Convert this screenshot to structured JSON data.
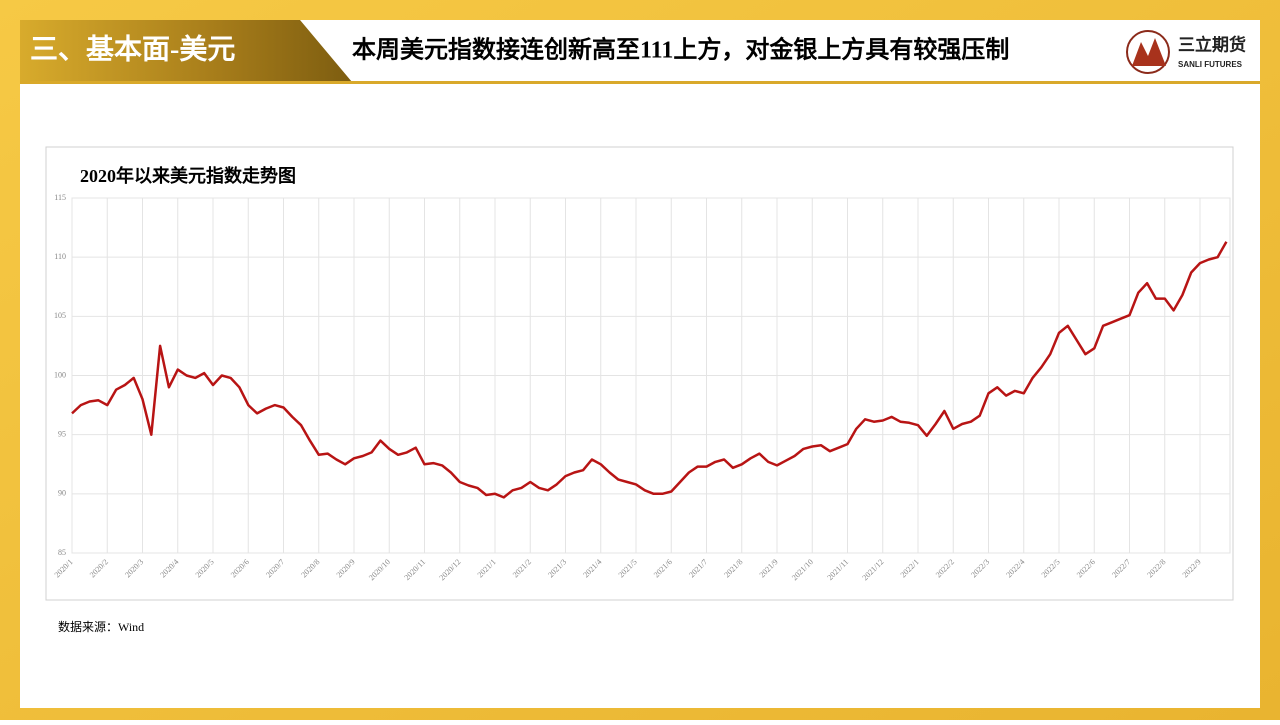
{
  "header": {
    "section": "三、基本面-美元",
    "title": "本周美元指数接连创新高至111上方，对金银上方具有较强压制"
  },
  "logo": {
    "name": "三立期货",
    "english": "SANLI FUTURES"
  },
  "chart_data": {
    "type": "line",
    "title": "2020年以来美元指数走势图",
    "categories": [
      "2020/1",
      null,
      null,
      null,
      "2020/2",
      null,
      null,
      null,
      "2020/3",
      null,
      null,
      null,
      "2020/4",
      null,
      null,
      null,
      "2020/5",
      null,
      null,
      null,
      "2020/6",
      null,
      null,
      null,
      "2020/7",
      null,
      null,
      null,
      "2020/8",
      null,
      null,
      null,
      "2020/9",
      null,
      null,
      null,
      "2020/10",
      null,
      null,
      null,
      "2020/11",
      null,
      null,
      null,
      "2020/12",
      null,
      null,
      null,
      "2021/1",
      null,
      null,
      null,
      "2021/2",
      null,
      null,
      null,
      "2021/3",
      null,
      null,
      null,
      "2021/4",
      null,
      null,
      null,
      "2021/5",
      null,
      null,
      null,
      "2021/6",
      null,
      null,
      null,
      "2021/7",
      null,
      null,
      null,
      "2021/8",
      null,
      null,
      null,
      "2021/9",
      null,
      null,
      null,
      "2021/10",
      null,
      null,
      null,
      "2021/11",
      null,
      null,
      null,
      "2021/12",
      null,
      null,
      null,
      "2022/1",
      null,
      null,
      null,
      "2022/2",
      null,
      null,
      null,
      "2022/3",
      null,
      null,
      null,
      "2022/4",
      null,
      null,
      null,
      "2022/5",
      null,
      null,
      null,
      "2022/6",
      null,
      null,
      null,
      "2022/7",
      null,
      null,
      null,
      "2022/8",
      null,
      null,
      null,
      "2022/9",
      null,
      null,
      null
    ],
    "values": [
      96.8,
      97.5,
      97.8,
      97.9,
      97.5,
      98.8,
      99.2,
      99.8,
      98.0,
      95.0,
      102.5,
      99.0,
      100.5,
      100.0,
      99.8,
      100.2,
      99.2,
      100.0,
      99.8,
      99.0,
      97.5,
      96.8,
      97.2,
      97.5,
      97.3,
      96.5,
      95.8,
      94.5,
      93.3,
      93.4,
      92.9,
      92.5,
      93.0,
      93.2,
      93.5,
      94.5,
      93.8,
      93.3,
      93.5,
      93.9,
      92.5,
      92.6,
      92.4,
      91.8,
      91.0,
      90.7,
      90.5,
      89.9,
      90.0,
      89.7,
      90.3,
      90.5,
      91.0,
      90.5,
      90.3,
      90.8,
      91.5,
      91.8,
      92.0,
      92.9,
      92.5,
      91.8,
      91.2,
      91.0,
      90.8,
      90.3,
      90.0,
      90.0,
      90.2,
      91.0,
      91.8,
      92.3,
      92.3,
      92.7,
      92.9,
      92.2,
      92.5,
      93.0,
      93.4,
      92.7,
      92.4,
      92.8,
      93.2,
      93.8,
      94.0,
      94.1,
      93.6,
      93.9,
      94.2,
      95.5,
      96.3,
      96.1,
      96.2,
      96.5,
      96.1,
      96.0,
      95.8,
      94.9,
      95.9,
      97.0,
      95.5,
      95.9,
      96.1,
      96.6,
      98.5,
      99.0,
      98.3,
      98.7,
      98.5,
      99.8,
      100.7,
      101.8,
      103.6,
      104.2,
      103.0,
      101.8,
      102.3,
      104.2,
      104.5,
      104.8,
      105.1,
      107.0,
      107.8,
      106.5,
      106.5,
      105.5,
      106.8,
      108.7,
      109.5,
      109.8,
      110.0,
      111.3
    ],
    "color": "#b81414",
    "ylim": [
      85,
      115
    ],
    "yticks": [
      85,
      90,
      95,
      100,
      105,
      110,
      115
    ],
    "grid": true
  },
  "source": "数据来源：Wind"
}
